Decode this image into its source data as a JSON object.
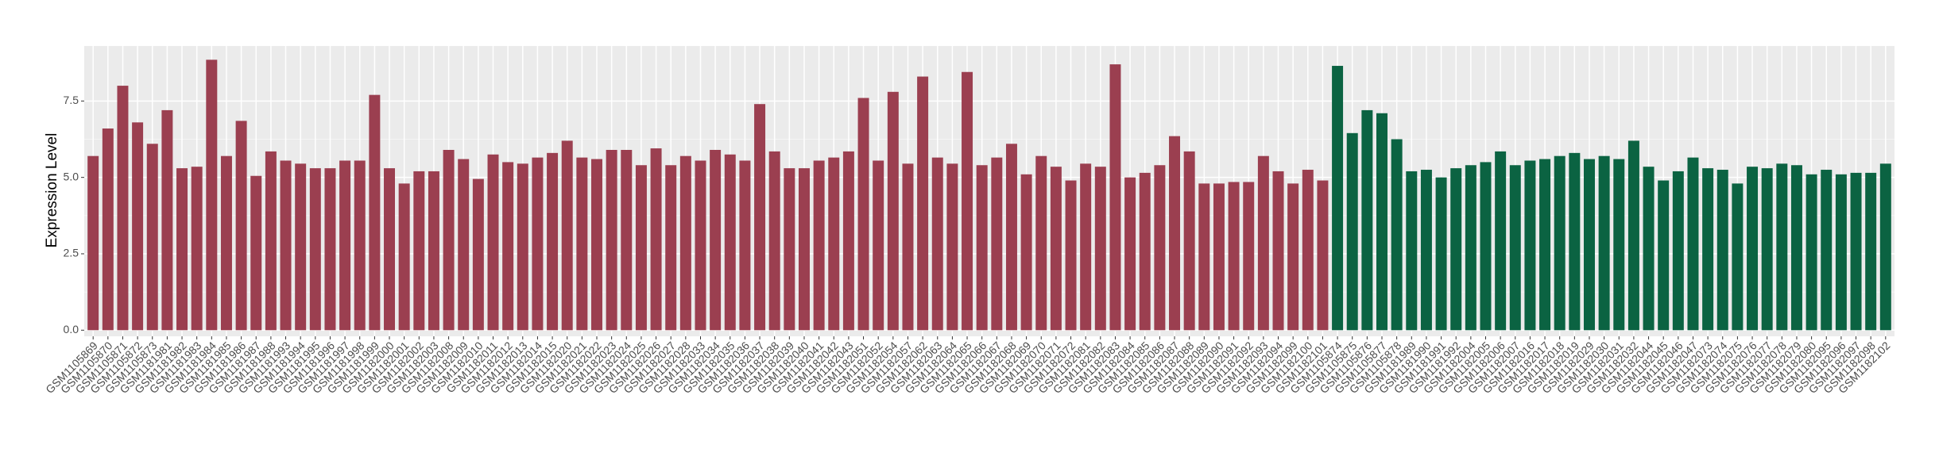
{
  "chart_data": {
    "type": "bar",
    "y_label": "Expression Level",
    "categories": [
      "GSM1105869",
      "GSM1105870",
      "GSM1105871",
      "GSM1105872",
      "GSM1105873",
      "GSM1181981",
      "GSM1181982",
      "GSM1181983",
      "GSM1181984",
      "GSM1181985",
      "GSM1181986",
      "GSM1181987",
      "GSM1181988",
      "GSM1181993",
      "GSM1181994",
      "GSM1181995",
      "GSM1181996",
      "GSM1181997",
      "GSM1181998",
      "GSM1181999",
      "GSM1182000",
      "GSM1182001",
      "GSM1182002",
      "GSM1182003",
      "GSM1182008",
      "GSM1182009",
      "GSM1182010",
      "GSM1182011",
      "GSM1182012",
      "GSM1182013",
      "GSM1182014",
      "GSM1182015",
      "GSM1182020",
      "GSM1182021",
      "GSM1182022",
      "GSM1182023",
      "GSM1182024",
      "GSM1182025",
      "GSM1182026",
      "GSM1182027",
      "GSM1182028",
      "GSM1182033",
      "GSM1182034",
      "GSM1182035",
      "GSM1182036",
      "GSM1182037",
      "GSM1182038",
      "GSM1182039",
      "GSM1182040",
      "GSM1182041",
      "GSM1182042",
      "GSM1182043",
      "GSM1182051",
      "GSM1182052",
      "GSM1182054",
      "GSM1182057",
      "GSM1182062",
      "GSM1182063",
      "GSM1182064",
      "GSM1182065",
      "GSM1182066",
      "GSM1182067",
      "GSM1182068",
      "GSM1182069",
      "GSM1182070",
      "GSM1182071",
      "GSM1182072",
      "GSM1182081",
      "GSM1182082",
      "GSM1182083",
      "GSM1182084",
      "GSM1182085",
      "GSM1182086",
      "GSM1182087",
      "GSM1182088",
      "GSM1182089",
      "GSM1182090",
      "GSM1182091",
      "GSM1182092",
      "GSM1182093",
      "GSM1182094",
      "GSM1182099",
      "GSM1182100",
      "GSM1182101",
      "GSM1105874",
      "GSM1105875",
      "GSM1105876",
      "GSM1105877",
      "GSM1105878",
      "GSM1181989",
      "GSM1181990",
      "GSM1181991",
      "GSM1181992",
      "GSM1182004",
      "GSM1182005",
      "GSM1182006",
      "GSM1182007",
      "GSM1182016",
      "GSM1182017",
      "GSM1182018",
      "GSM1182019",
      "GSM1182029",
      "GSM1182030",
      "GSM1182031",
      "GSM1182032",
      "GSM1182044",
      "GSM1182045",
      "GSM1182046",
      "GSM1182047",
      "GSM1182073",
      "GSM1182074",
      "GSM1182075",
      "GSM1182076",
      "GSM1182077",
      "GSM1182078",
      "GSM1182079",
      "GSM1182080",
      "GSM1182095",
      "GSM1182096",
      "GSM1182097",
      "GSM1182098",
      "GSM1182102"
    ],
    "series": [
      {
        "color": "#9b3f50",
        "values": [
          5.7,
          6.6,
          8.0,
          6.8,
          6.1,
          7.2,
          5.3,
          5.35,
          8.85,
          5.7,
          6.85,
          5.05,
          5.85,
          5.55,
          5.45,
          5.3,
          5.3,
          5.55,
          5.55,
          7.7,
          5.3,
          4.8,
          5.2,
          5.2,
          5.9,
          5.6,
          4.95,
          5.75,
          5.5,
          5.45,
          5.65,
          5.8,
          6.2,
          5.65,
          5.6,
          5.9,
          5.9,
          5.4,
          5.95,
          5.4,
          5.7,
          5.55,
          5.9,
          5.75,
          5.55,
          7.4,
          5.85,
          5.3,
          5.3,
          5.55,
          5.65,
          5.85,
          7.6,
          5.55,
          7.8,
          5.45,
          8.3,
          5.65,
          5.45,
          8.45,
          5.4,
          5.65,
          6.1,
          5.1,
          5.7,
          5.35,
          4.9,
          5.45,
          5.35,
          8.7,
          5.0,
          5.15,
          5.4,
          6.35,
          5.85,
          4.8,
          4.8,
          4.85,
          4.85,
          5.7,
          5.2,
          4.8,
          5.25,
          4.9,
          null,
          null,
          null,
          null,
          null,
          null,
          null,
          null,
          null,
          null,
          null,
          null,
          null,
          null,
          null,
          null,
          null,
          null,
          null,
          null,
          null,
          null,
          null,
          null,
          null,
          null,
          null,
          null,
          null,
          null,
          null,
          null,
          null,
          null,
          null,
          null,
          null,
          null
        ]
      },
      {
        "color": "#0b6342",
        "values": [
          null,
          null,
          null,
          null,
          null,
          null,
          null,
          null,
          null,
          null,
          null,
          null,
          null,
          null,
          null,
          null,
          null,
          null,
          null,
          null,
          null,
          null,
          null,
          null,
          null,
          null,
          null,
          null,
          null,
          null,
          null,
          null,
          null,
          null,
          null,
          null,
          null,
          null,
          null,
          null,
          null,
          null,
          null,
          null,
          null,
          null,
          null,
          null,
          null,
          null,
          null,
          null,
          null,
          null,
          null,
          null,
          null,
          null,
          null,
          null,
          null,
          null,
          null,
          null,
          null,
          null,
          null,
          null,
          null,
          null,
          null,
          null,
          null,
          null,
          null,
          null,
          null,
          null,
          null,
          null,
          null,
          null,
          null,
          null,
          8.65,
          6.45,
          7.2,
          7.1,
          6.25,
          5.2,
          5.25,
          5.0,
          5.3,
          5.4,
          5.5,
          5.85,
          5.4,
          5.55,
          5.6,
          5.7,
          5.8,
          5.6,
          5.7,
          5.6,
          6.2,
          5.35,
          4.9,
          5.2,
          5.65,
          5.3,
          5.25,
          4.8,
          5.35,
          5.3,
          5.45,
          5.4,
          5.1,
          5.25,
          5.1,
          5.15,
          5.15,
          5.45
        ]
      }
    ],
    "ylim": [
      -0.2,
      9.3
    ],
    "yticks": [
      {
        "value": 0,
        "label": "0.0"
      },
      2.5,
      {
        "value": 5,
        "label": "5.0"
      },
      7.5
    ],
    "grid": true
  }
}
